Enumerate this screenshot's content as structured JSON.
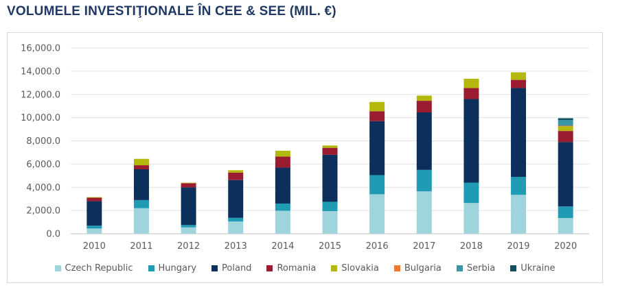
{
  "page": {
    "title": "VOLUMELE INVESTIŢIONALE ÎN CEE & SEE (MIL. €)"
  },
  "chart_data": {
    "type": "bar",
    "stacked": true,
    "title": "VOLUMELE INVESTIŢIONALE ÎN CEE & SEE (MIL. €)",
    "xlabel": "",
    "ylabel": "",
    "ylim": [
      0,
      16000
    ],
    "yticks": [
      0,
      2000,
      4000,
      6000,
      8000,
      10000,
      12000,
      14000,
      16000
    ],
    "ytick_labels": [
      "0.0",
      "2,000.0",
      "4,000.0",
      "6,000.0",
      "8,000.0",
      "10,000.0",
      "12,000.0",
      "14,000.0",
      "16,000.0"
    ],
    "grid": true,
    "legend_position": "bottom",
    "categories": [
      "2010",
      "2011",
      "2012",
      "2013",
      "2014",
      "2015",
      "2016",
      "2017",
      "2018",
      "2019",
      "2020"
    ],
    "series": [
      {
        "name": "Czech Republic",
        "color": "#9fd4dd",
        "values": [
          450,
          2200,
          550,
          1050,
          1980,
          1950,
          3400,
          3650,
          2650,
          3350,
          1350
        ]
      },
      {
        "name": "Hungary",
        "color": "#1f9bb4",
        "values": [
          250,
          700,
          200,
          320,
          620,
          800,
          1650,
          1850,
          1750,
          1550,
          1000
        ]
      },
      {
        "name": "Poland",
        "color": "#0d2f5c",
        "values": [
          2100,
          2650,
          3250,
          3250,
          3100,
          4050,
          4650,
          4950,
          7200,
          7650,
          5550
        ]
      },
      {
        "name": "Romania",
        "color": "#9b1b30",
        "values": [
          300,
          350,
          350,
          650,
          950,
          600,
          850,
          1000,
          950,
          700,
          950
        ]
      },
      {
        "name": "Slovakia",
        "color": "#b5b80c",
        "values": [
          50,
          550,
          50,
          200,
          500,
          200,
          800,
          450,
          800,
          650,
          400
        ]
      },
      {
        "name": "Bulgaria",
        "color": "#f07a2b",
        "values": [
          0,
          0,
          0,
          0,
          0,
          0,
          0,
          0,
          0,
          0,
          50
        ]
      },
      {
        "name": "Serbia",
        "color": "#3a95a5",
        "values": [
          0,
          0,
          0,
          0,
          0,
          0,
          0,
          0,
          0,
          0,
          500
        ]
      },
      {
        "name": "Ukraine",
        "color": "#0f5060",
        "values": [
          0,
          0,
          0,
          0,
          0,
          0,
          0,
          0,
          0,
          0,
          150
        ]
      }
    ]
  }
}
